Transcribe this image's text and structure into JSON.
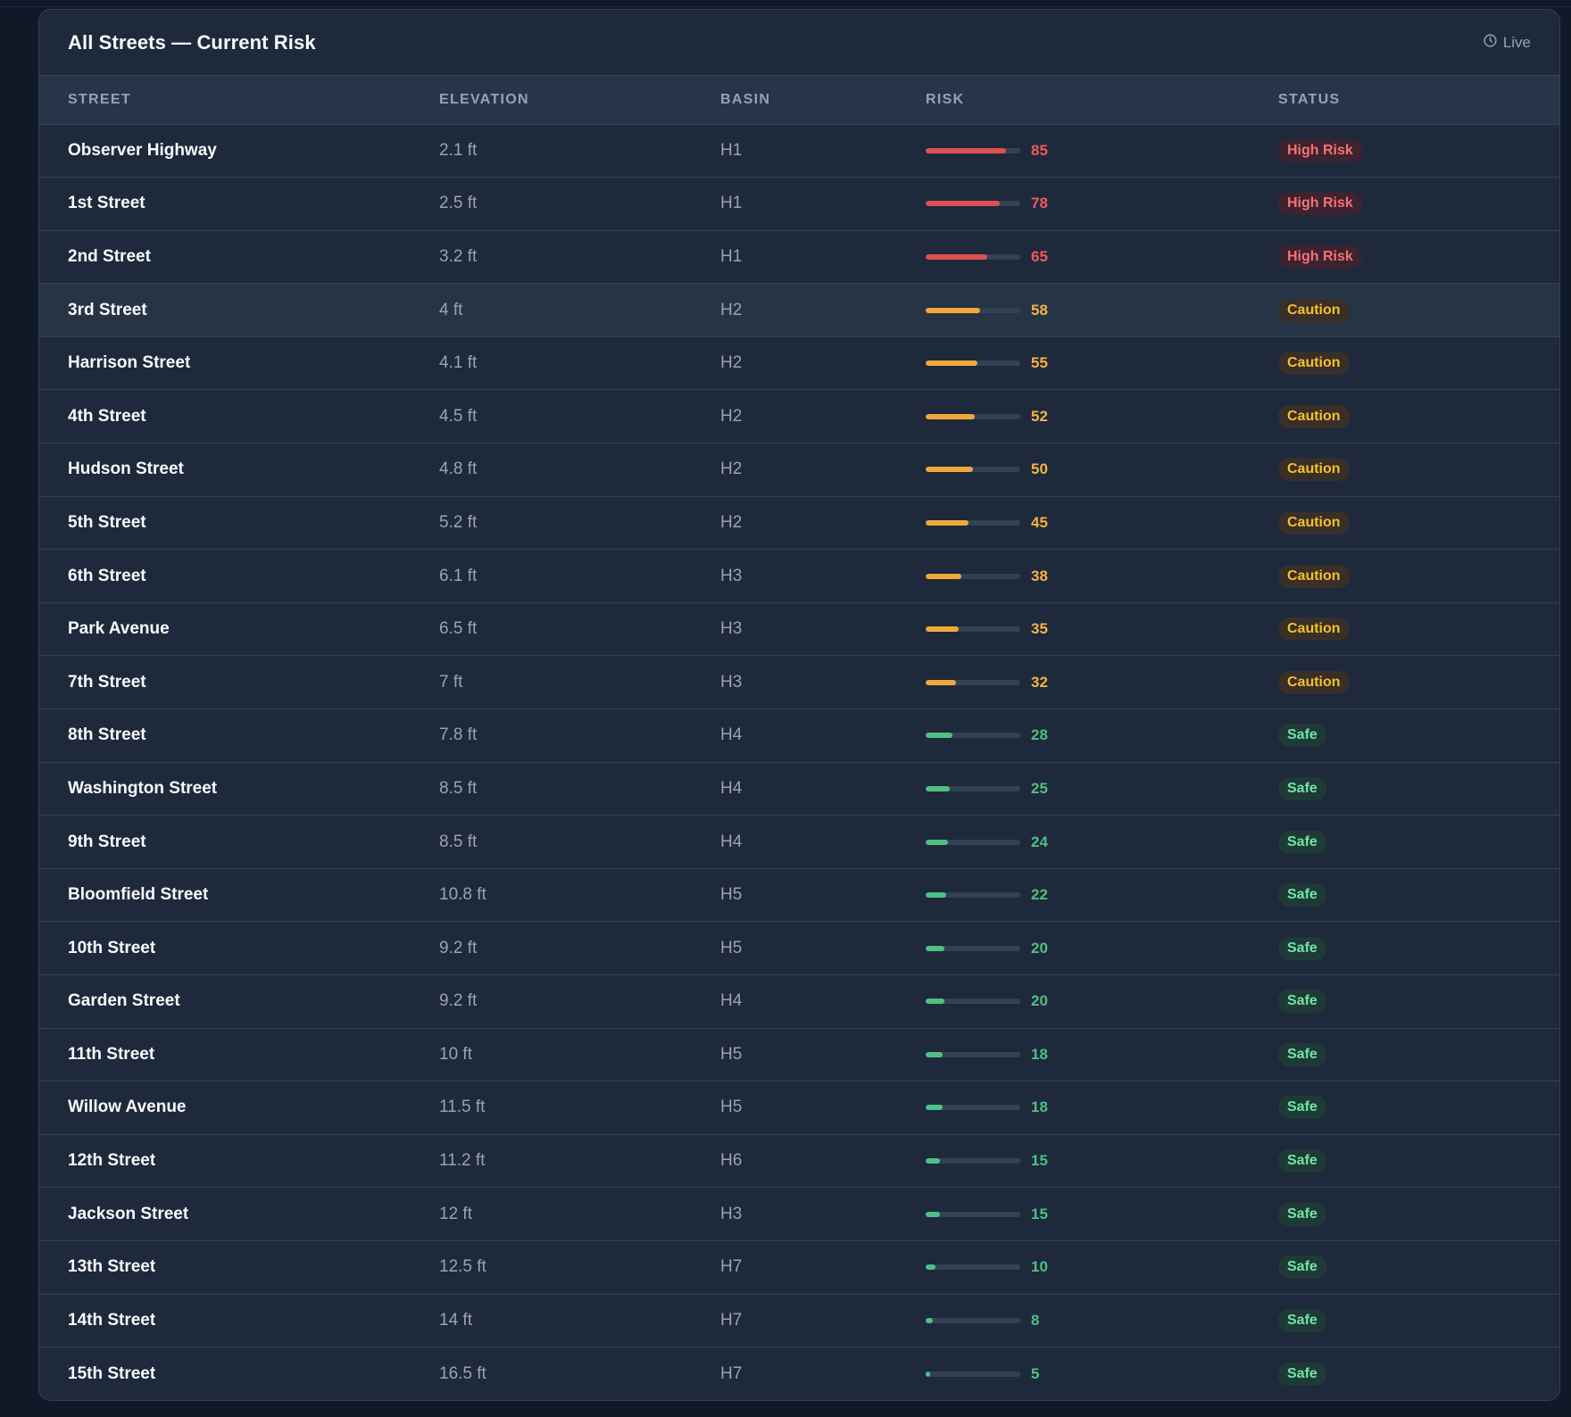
{
  "panel": {
    "title": "All Streets — Current Risk",
    "live_label": "Live",
    "live_icon": "clock-icon"
  },
  "columns": [
    "STREET",
    "ELEVATION",
    "BASIN",
    "RISK",
    "STATUS"
  ],
  "colors": {
    "high": "#e04f4f",
    "caution": "#f0a83a",
    "safe": "#4fbf84"
  },
  "rows": [
    {
      "street": "Observer Highway",
      "elevation": "2.1 ft",
      "basin": "H1",
      "risk": 85,
      "status": "High Risk",
      "level": "high"
    },
    {
      "street": "1st Street",
      "elevation": "2.5 ft",
      "basin": "H1",
      "risk": 78,
      "status": "High Risk",
      "level": "high"
    },
    {
      "street": "2nd Street",
      "elevation": "3.2 ft",
      "basin": "H1",
      "risk": 65,
      "status": "High Risk",
      "level": "high"
    },
    {
      "street": "3rd Street",
      "elevation": "4 ft",
      "basin": "H2",
      "risk": 58,
      "status": "Caution",
      "level": "caution"
    },
    {
      "street": "Harrison Street",
      "elevation": "4.1 ft",
      "basin": "H2",
      "risk": 55,
      "status": "Caution",
      "level": "caution"
    },
    {
      "street": "4th Street",
      "elevation": "4.5 ft",
      "basin": "H2",
      "risk": 52,
      "status": "Caution",
      "level": "caution"
    },
    {
      "street": "Hudson Street",
      "elevation": "4.8 ft",
      "basin": "H2",
      "risk": 50,
      "status": "Caution",
      "level": "caution"
    },
    {
      "street": "5th Street",
      "elevation": "5.2 ft",
      "basin": "H2",
      "risk": 45,
      "status": "Caution",
      "level": "caution"
    },
    {
      "street": "6th Street",
      "elevation": "6.1 ft",
      "basin": "H3",
      "risk": 38,
      "status": "Caution",
      "level": "caution"
    },
    {
      "street": "Park Avenue",
      "elevation": "6.5 ft",
      "basin": "H3",
      "risk": 35,
      "status": "Caution",
      "level": "caution"
    },
    {
      "street": "7th Street",
      "elevation": "7 ft",
      "basin": "H3",
      "risk": 32,
      "status": "Caution",
      "level": "caution"
    },
    {
      "street": "8th Street",
      "elevation": "7.8 ft",
      "basin": "H4",
      "risk": 28,
      "status": "Safe",
      "level": "safe"
    },
    {
      "street": "Washington Street",
      "elevation": "8.5 ft",
      "basin": "H4",
      "risk": 25,
      "status": "Safe",
      "level": "safe"
    },
    {
      "street": "9th Street",
      "elevation": "8.5 ft",
      "basin": "H4",
      "risk": 24,
      "status": "Safe",
      "level": "safe"
    },
    {
      "street": "Bloomfield Street",
      "elevation": "10.8 ft",
      "basin": "H5",
      "risk": 22,
      "status": "Safe",
      "level": "safe"
    },
    {
      "street": "10th Street",
      "elevation": "9.2 ft",
      "basin": "H5",
      "risk": 20,
      "status": "Safe",
      "level": "safe"
    },
    {
      "street": "Garden Street",
      "elevation": "9.2 ft",
      "basin": "H4",
      "risk": 20,
      "status": "Safe",
      "level": "safe"
    },
    {
      "street": "11th Street",
      "elevation": "10 ft",
      "basin": "H5",
      "risk": 18,
      "status": "Safe",
      "level": "safe"
    },
    {
      "street": "Willow Avenue",
      "elevation": "11.5 ft",
      "basin": "H5",
      "risk": 18,
      "status": "Safe",
      "level": "safe"
    },
    {
      "street": "12th Street",
      "elevation": "11.2 ft",
      "basin": "H6",
      "risk": 15,
      "status": "Safe",
      "level": "safe"
    },
    {
      "street": "Jackson Street",
      "elevation": "12 ft",
      "basin": "H3",
      "risk": 15,
      "status": "Safe",
      "level": "safe"
    },
    {
      "street": "13th Street",
      "elevation": "12.5 ft",
      "basin": "H7",
      "risk": 10,
      "status": "Safe",
      "level": "safe"
    },
    {
      "street": "14th Street",
      "elevation": "14 ft",
      "basin": "H7",
      "risk": 8,
      "status": "Safe",
      "level": "safe"
    },
    {
      "street": "15th Street",
      "elevation": "16.5 ft",
      "basin": "H7",
      "risk": 5,
      "status": "Safe",
      "level": "safe"
    }
  ]
}
